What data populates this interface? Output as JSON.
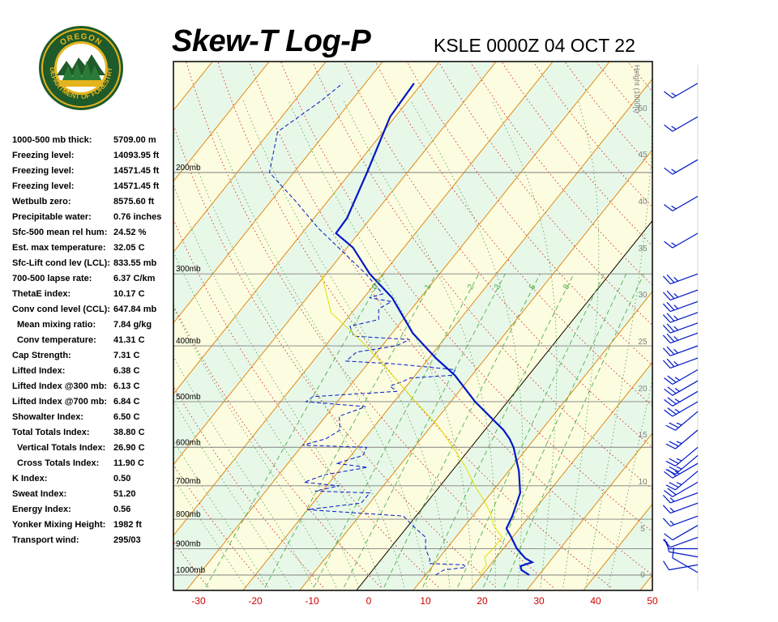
{
  "header": {
    "title": "Skew-T Log-P",
    "subtitle": "KSLE 0000Z 04 OCT 22"
  },
  "logo": {
    "top_text": "OREGON",
    "ring_text": "DEPARTMENT OF FORESTRY",
    "colors": {
      "ring": "#1f5a2a",
      "gold": "#e4b41e",
      "sky": "#ffffff"
    }
  },
  "indices": [
    {
      "label": "1000-500 mb thick:",
      "value": "5709.00 m",
      "indent": false
    },
    {
      "label": "Freezing level:",
      "value": "14093.95 ft",
      "indent": false
    },
    {
      "label": "Freezing level:",
      "value": "14571.45 ft",
      "indent": false
    },
    {
      "label": "Freezing level:",
      "value": "14571.45 ft",
      "indent": false
    },
    {
      "label": "Wetbulb zero:",
      "value": "8575.60 ft",
      "indent": false
    },
    {
      "label": "Precipitable water:",
      "value": "0.76 inches",
      "indent": false
    },
    {
      "label": "Sfc-500 mean rel hum:",
      "value": "24.52 %",
      "indent": false
    },
    {
      "label": "Est. max temperature:",
      "value": "32.05 C",
      "indent": false
    },
    {
      "label": "Sfc-Lift cond lev (LCL):",
      "value": "833.55 mb",
      "indent": false
    },
    {
      "label": "700-500 lapse rate:",
      "value": "6.37 C/km",
      "indent": false
    },
    {
      "label": "ThetaE index:",
      "value": "10.17 C",
      "indent": false
    },
    {
      "label": "Conv cond level (CCL):",
      "value": "647.84 mb",
      "indent": false
    },
    {
      "label": "Mean mixing ratio:",
      "value": "7.84 g/kg",
      "indent": true
    },
    {
      "label": "Conv temperature:",
      "value": "41.31 C",
      "indent": true
    },
    {
      "label": "Cap Strength:",
      "value": "7.31 C",
      "indent": false
    },
    {
      "label": "Lifted Index:",
      "value": "6.38 C",
      "indent": false
    },
    {
      "label": "Lifted Index @300 mb:",
      "value": "6.13 C",
      "indent": false
    },
    {
      "label": "Lifted Index @700 mb:",
      "value": "6.84 C",
      "indent": false
    },
    {
      "label": "Showalter Index:",
      "value": "6.50 C",
      "indent": false
    },
    {
      "label": "Total Totals Index:",
      "value": "38.80 C",
      "indent": false
    },
    {
      "label": "Vertical Totals Index:",
      "value": "26.90 C",
      "indent": true
    },
    {
      "label": "Cross Totals Index:",
      "value": "11.90 C",
      "indent": true
    },
    {
      "label": "K Index:",
      "value": "0.50",
      "indent": false
    },
    {
      "label": "Sweat Index:",
      "value": "51.20",
      "indent": false
    },
    {
      "label": "Energy Index:",
      "value": "0.56",
      "indent": false
    },
    {
      "label": "Yonker Mixing Height:",
      "value": "1982 ft",
      "indent": false
    },
    {
      "label": "Transport wind:",
      "value": "295/03",
      "indent": false
    }
  ],
  "chart_data": {
    "type": "line",
    "title": "Skew-T Log-P",
    "subtitle": "KSLE 0000Z 04 OCT 22",
    "xlabel": "",
    "ylabel": "",
    "x_ticks": [
      -30,
      -20,
      -10,
      0,
      10,
      20,
      30,
      40,
      50
    ],
    "xlim": [
      -30,
      50
    ],
    "pressure_levels": [
      {
        "p": 200,
        "label": "200mb"
      },
      {
        "p": 300,
        "label": "300mb"
      },
      {
        "p": 400,
        "label": "400mb"
      },
      {
        "p": 500,
        "label": "500mb"
      },
      {
        "p": 600,
        "label": "600mb"
      },
      {
        "p": 700,
        "label": "700mb"
      },
      {
        "p": 800,
        "label": "800mb"
      },
      {
        "p": 900,
        "label": "900mb"
      },
      {
        "p": 1000,
        "label": "1000mb"
      }
    ],
    "height_axis": {
      "label": "Height (1000ft)",
      "ticks": [
        0,
        5,
        10,
        15,
        20,
        25,
        30,
        35,
        40,
        45,
        50
      ]
    },
    "mixing_ratio_labels": [
      "0.4",
      "1",
      "2",
      "3",
      "5",
      "8"
    ],
    "series": [
      {
        "name": "",
        "style": "solid",
        "color": "#0018c8",
        "points": [
          {
            "p": 1000,
            "t": 28.3
          },
          {
            "p": 980,
            "t": 26.2
          },
          {
            "p": 965,
            "t": 25.5
          },
          {
            "p": 950,
            "t": 27.0
          },
          {
            "p": 935,
            "t": 25.2
          },
          {
            "p": 900,
            "t": 22.4
          },
          {
            "p": 860,
            "t": 19.8
          },
          {
            "p": 830,
            "t": 17.7
          },
          {
            "p": 790,
            "t": 17.0
          },
          {
            "p": 720,
            "t": 15.1
          },
          {
            "p": 660,
            "t": 11.8
          },
          {
            "p": 600,
            "t": 7.5
          },
          {
            "p": 580,
            "t": 5.6
          },
          {
            "p": 560,
            "t": 3.3
          },
          {
            "p": 500,
            "t": -5.7
          },
          {
            "p": 450,
            "t": -13.0
          },
          {
            "p": 420,
            "t": -18.8
          },
          {
            "p": 380,
            "t": -26.4
          },
          {
            "p": 330,
            "t": -35.0
          },
          {
            "p": 300,
            "t": -42.3
          },
          {
            "p": 270,
            "t": -49.0
          },
          {
            "p": 255,
            "t": -54.0
          },
          {
            "p": 240,
            "t": -54.2
          },
          {
            "p": 200,
            "t": -57.1
          },
          {
            "p": 160,
            "t": -60.9
          },
          {
            "p": 140,
            "t": -61.4
          }
        ]
      },
      {
        "name": "",
        "style": "dashed",
        "color": "#0018c8",
        "points": [
          {
            "p": 1000,
            "t": 11.8
          },
          {
            "p": 980,
            "t": 12.5
          },
          {
            "p": 970,
            "t": 16.0
          },
          {
            "p": 960,
            "t": 15.3
          },
          {
            "p": 955,
            "t": 9.0
          },
          {
            "p": 940,
            "t": 8.6
          },
          {
            "p": 900,
            "t": 6.3
          },
          {
            "p": 860,
            "t": 4.7
          },
          {
            "p": 830,
            "t": 1.7
          },
          {
            "p": 790,
            "t": -2.2
          },
          {
            "p": 770,
            "t": -20.1
          },
          {
            "p": 750,
            "t": -11.5
          },
          {
            "p": 720,
            "t": -11.4
          },
          {
            "p": 715,
            "t": -21.3
          },
          {
            "p": 700,
            "t": -17.8
          },
          {
            "p": 690,
            "t": -24.5
          },
          {
            "p": 670,
            "t": -21.9
          },
          {
            "p": 650,
            "t": -15.4
          },
          {
            "p": 640,
            "t": -21.5
          },
          {
            "p": 620,
            "t": -17.9
          },
          {
            "p": 600,
            "t": -18.4
          },
          {
            "p": 595,
            "t": -30.0
          },
          {
            "p": 580,
            "t": -26.8
          },
          {
            "p": 560,
            "t": -25.5
          },
          {
            "p": 530,
            "t": -27.6
          },
          {
            "p": 510,
            "t": -24.3
          },
          {
            "p": 500,
            "t": -35.5
          },
          {
            "p": 490,
            "t": -35.0
          },
          {
            "p": 480,
            "t": -21.0
          },
          {
            "p": 470,
            "t": -22.9
          },
          {
            "p": 460,
            "t": -21.1
          },
          {
            "p": 455,
            "t": -20.5
          },
          {
            "p": 450,
            "t": -13.5
          },
          {
            "p": 440,
            "t": -13.7
          },
          {
            "p": 430,
            "t": -25.0
          },
          {
            "p": 425,
            "t": -34.2
          },
          {
            "p": 410,
            "t": -33.6
          },
          {
            "p": 400,
            "t": -27.5
          },
          {
            "p": 390,
            "t": -26.0
          },
          {
            "p": 385,
            "t": -36.3
          },
          {
            "p": 370,
            "t": -38.4
          },
          {
            "p": 360,
            "t": -34.3
          },
          {
            "p": 345,
            "t": -35.8
          },
          {
            "p": 335,
            "t": -34.6
          },
          {
            "p": 330,
            "t": -39.0
          },
          {
            "p": 325,
            "t": -37.2
          },
          {
            "p": 300,
            "t": -43.0
          },
          {
            "p": 250,
            "t": -57.8
          },
          {
            "p": 225,
            "t": -65.4
          },
          {
            "p": 200,
            "t": -74.3
          },
          {
            "p": 170,
            "t": -78.6
          },
          {
            "p": 150,
            "t": -75.3
          },
          {
            "p": 140,
            "t": -74.0
          }
        ]
      },
      {
        "name": "",
        "style": "solid-thin",
        "color": "#e0e000",
        "points": [
          {
            "p": 1000,
            "t": 19.5
          },
          {
            "p": 960,
            "t": 19.3
          },
          {
            "p": 930,
            "t": 17.9
          },
          {
            "p": 900,
            "t": 18.2
          },
          {
            "p": 860,
            "t": 18.2
          },
          {
            "p": 820,
            "t": 15.0
          },
          {
            "p": 780,
            "t": 12.7
          },
          {
            "p": 740,
            "t": 9.6
          },
          {
            "p": 700,
            "t": 6.1
          },
          {
            "p": 650,
            "t": 1.9
          },
          {
            "p": 600,
            "t": -3.2
          },
          {
            "p": 550,
            "t": -8.9
          },
          {
            "p": 500,
            "t": -16.2
          },
          {
            "p": 450,
            "t": -24.0
          },
          {
            "p": 400,
            "t": -32.8
          },
          {
            "p": 350,
            "t": -43.7
          },
          {
            "p": 300,
            "t": -50.8
          }
        ]
      }
    ],
    "wind_barbs": [
      {
        "p": 990,
        "dir": 300,
        "kt": 10
      },
      {
        "p": 960,
        "dir": 260,
        "kt": 10
      },
      {
        "p": 930,
        "dir": 280,
        "kt": 10
      },
      {
        "p": 900,
        "dir": 270,
        "kt": 10
      },
      {
        "p": 860,
        "dir": 250,
        "kt": 10
      },
      {
        "p": 820,
        "dir": 240,
        "kt": 10
      },
      {
        "p": 790,
        "dir": 250,
        "kt": 15
      },
      {
        "p": 750,
        "dir": 250,
        "kt": 15
      },
      {
        "p": 720,
        "dir": 250,
        "kt": 15
      },
      {
        "p": 690,
        "dir": 240,
        "kt": 20
      },
      {
        "p": 660,
        "dir": 230,
        "kt": 25
      },
      {
        "p": 640,
        "dir": 240,
        "kt": 25
      },
      {
        "p": 620,
        "dir": 230,
        "kt": 25
      },
      {
        "p": 600,
        "dir": 230,
        "kt": 25
      },
      {
        "p": 560,
        "dir": 230,
        "kt": 25
      },
      {
        "p": 520,
        "dir": 230,
        "kt": 25
      },
      {
        "p": 500,
        "dir": 240,
        "kt": 25
      },
      {
        "p": 480,
        "dir": 240,
        "kt": 25
      },
      {
        "p": 460,
        "dir": 240,
        "kt": 25
      },
      {
        "p": 440,
        "dir": 240,
        "kt": 25
      },
      {
        "p": 420,
        "dir": 250,
        "kt": 25
      },
      {
        "p": 400,
        "dir": 250,
        "kt": 25
      },
      {
        "p": 380,
        "dir": 250,
        "kt": 25
      },
      {
        "p": 365,
        "dir": 250,
        "kt": 25
      },
      {
        "p": 350,
        "dir": 250,
        "kt": 25
      },
      {
        "p": 335,
        "dir": 250,
        "kt": 25
      },
      {
        "p": 320,
        "dir": 250,
        "kt": 25
      },
      {
        "p": 300,
        "dir": 250,
        "kt": 25
      },
      {
        "p": 255,
        "dir": 240,
        "kt": 15
      },
      {
        "p": 220,
        "dir": 240,
        "kt": 15
      },
      {
        "p": 190,
        "dir": 240,
        "kt": 15
      },
      {
        "p": 160,
        "dir": 240,
        "kt": 15
      },
      {
        "p": 140,
        "dir": 240,
        "kt": 15
      }
    ],
    "grid": true,
    "colors": {
      "background_light": "#e8f8e8",
      "background_band": "#fcfce0",
      "isotherm": "#e08000",
      "dry_adiabat": "#d03030",
      "moist_adiabat": "#50a050",
      "mixing_ratio": "#50b050",
      "pressure_line": "#808080",
      "temperature": "#0018c8",
      "dewpoint": "#0018c8",
      "parcel": "#e0e000",
      "tick_label": "#cc0000",
      "height_label": "#808080"
    }
  }
}
